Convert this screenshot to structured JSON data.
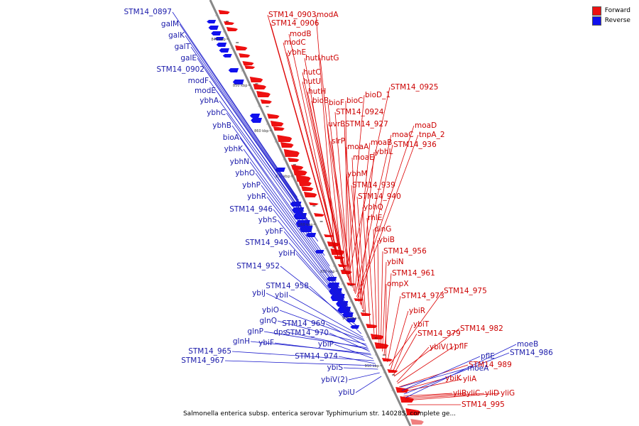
{
  "legend": {
    "forward_label": "Forward",
    "reverse_label": "Reverse",
    "forward_color": "#ee1111",
    "reverse_color": "#1111ee"
  },
  "caption": "Salmonella enterica subsp. enterica serovar Typhimurium str. 14028S, complete ge...",
  "axis_ticks": [
    "840 kbp",
    "850 kbp",
    "860 kbp",
    "870 kbp",
    "880 kbp",
    "890 kbp",
    "900 kbp",
    "910 kbp"
  ],
  "forward_labels": [
    "STM14_0903",
    "modA",
    "STM14_0906",
    "modB",
    "modC",
    "ybhE",
    "hutI",
    "hutG",
    "hutC",
    "hutU",
    "hutH",
    "bioB",
    "bioF",
    "bioC",
    "bioD_1",
    "STM14_0925",
    "STM14_0924",
    "uvrB",
    "STM14_927",
    "slrP",
    "moaA",
    "moaB",
    "moaC",
    "moaD",
    "tnpA_2",
    "moaE",
    "ybhL",
    "STM14_936",
    "ybhM",
    "STM14_939",
    "STM14_940",
    "ybhQ",
    "rhlE",
    "dinG",
    "ybiB",
    "STM14_956",
    "ybiN",
    "STM14_961",
    "ompX",
    "STM14_973",
    "STM14_975",
    "ybiR",
    "ybiT",
    "STM14_979",
    "STM14_982",
    "ybiV(1)",
    "pflF",
    "STM14_989",
    "ybiK",
    "yliA",
    "yliB",
    "yliC",
    "yliD",
    "yliG",
    "STM14_995"
  ],
  "reverse_labels": [
    "STM14_0897",
    "galM",
    "galK",
    "galT",
    "galE",
    "STM14_0902",
    "modF",
    "modE",
    "ybhA",
    "ybhC",
    "ybhB",
    "bioA",
    "ybhK",
    "ybhN",
    "ybhO",
    "ybhP",
    "ybhR",
    "STM14_946",
    "ybhS",
    "ybhF",
    "STM14_949",
    "ybiH",
    "STM14_952",
    "STM14_958",
    "ybiI",
    "ybiJ",
    "ybiO",
    "glnQ",
    "STM14_969",
    "glnP",
    "dps",
    "STM14_970",
    "glnH",
    "ybiF",
    "ybiP",
    "STM14_965",
    "STM14_974",
    "STM14_967",
    "ybiS",
    "ybiV(2)",
    "ybiU",
    "moeB",
    "STM14_986",
    "pflE",
    "moeA"
  ]
}
